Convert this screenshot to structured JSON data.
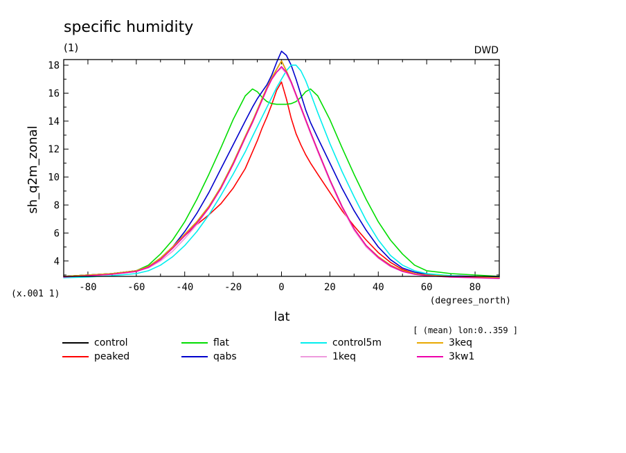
{
  "chart_data": {
    "type": "line",
    "title": "specific humidity",
    "subtitle_left": "(1)",
    "subtitle_right": "DWD",
    "xlabel": "lat",
    "xunits": "(degrees_north)",
    "ylabel": "sh_q2m_zonal",
    "yscale_note": "(x.001 1)",
    "footnote": "[ (mean) lon:0..359 ]",
    "xlim": [
      -90,
      90
    ],
    "ylim": [
      2.9,
      18.4
    ],
    "xticks": [
      -80,
      -60,
      -40,
      -20,
      0,
      20,
      40,
      60,
      80
    ],
    "yticks": [
      4,
      6,
      8,
      10,
      12,
      14,
      16,
      18
    ],
    "grid": false,
    "legend_position": "bottom",
    "x": [
      -90,
      -80,
      -70,
      -60,
      -55,
      -50,
      -45,
      -40,
      -35,
      -30,
      -25,
      -20,
      -15,
      -12,
      -10,
      -8,
      -6,
      -4,
      -2,
      0,
      2,
      4,
      6,
      8,
      10,
      12,
      15,
      20,
      25,
      30,
      35,
      40,
      45,
      50,
      55,
      60,
      70,
      80,
      90
    ],
    "series": [
      {
        "name": "control",
        "color": "#000000",
        "values": [
          2.9,
          3.0,
          3.1,
          3.3,
          3.6,
          4.2,
          5.0,
          5.9,
          6.8,
          7.9,
          9.3,
          11.0,
          12.9,
          14.0,
          14.8,
          15.6,
          16.4,
          17.1,
          17.7,
          18.3,
          17.6,
          16.8,
          15.9,
          15.0,
          14.1,
          13.2,
          11.9,
          9.8,
          7.9,
          6.3,
          5.1,
          4.3,
          3.7,
          3.3,
          3.1,
          3.0,
          2.9,
          2.85,
          2.8
        ]
      },
      {
        "name": "peaked",
        "color": "#ff0000",
        "values": [
          2.9,
          3.0,
          3.1,
          3.3,
          3.6,
          4.2,
          5.0,
          5.8,
          6.6,
          7.3,
          8.1,
          9.2,
          10.6,
          11.8,
          12.6,
          13.5,
          14.3,
          15.2,
          16.2,
          16.8,
          15.6,
          14.2,
          13.1,
          12.3,
          11.6,
          11.0,
          10.2,
          8.9,
          7.6,
          6.5,
          5.5,
          4.6,
          3.9,
          3.4,
          3.1,
          3.0,
          2.9,
          2.85,
          2.8
        ]
      },
      {
        "name": "flat",
        "color": "#00dd00",
        "values": [
          2.9,
          3.0,
          3.1,
          3.3,
          3.7,
          4.5,
          5.5,
          6.8,
          8.4,
          10.2,
          12.1,
          14.1,
          15.8,
          16.3,
          16.1,
          15.7,
          15.4,
          15.25,
          15.2,
          15.2,
          15.2,
          15.25,
          15.4,
          15.7,
          16.1,
          16.3,
          15.8,
          14.1,
          12.1,
          10.2,
          8.4,
          6.8,
          5.5,
          4.5,
          3.7,
          3.3,
          3.1,
          3.0,
          2.9
        ]
      },
      {
        "name": "qabs",
        "color": "#0000cc",
        "values": [
          2.9,
          3.0,
          3.1,
          3.3,
          3.6,
          4.2,
          5.0,
          6.1,
          7.4,
          8.9,
          10.6,
          12.3,
          14.0,
          15.0,
          15.6,
          16.1,
          16.6,
          17.3,
          18.2,
          19.0,
          18.7,
          18.0,
          17.0,
          15.9,
          14.8,
          13.9,
          12.8,
          11.0,
          9.2,
          7.6,
          6.2,
          5.0,
          4.1,
          3.5,
          3.2,
          3.05,
          2.95,
          2.9,
          2.85
        ]
      },
      {
        "name": "control5m",
        "color": "#00eeee",
        "values": [
          2.8,
          2.85,
          2.95,
          3.1,
          3.3,
          3.7,
          4.3,
          5.1,
          6.1,
          7.3,
          8.7,
          10.2,
          11.8,
          12.9,
          13.6,
          14.3,
          15.0,
          15.7,
          16.4,
          17.0,
          17.6,
          18.0,
          18.0,
          17.6,
          16.9,
          16.0,
          14.6,
          12.4,
          10.4,
          8.6,
          6.9,
          5.5,
          4.4,
          3.7,
          3.3,
          3.1,
          2.95,
          2.85,
          2.8
        ]
      },
      {
        "name": "1keq",
        "color": "#ee99dd",
        "values": [
          2.85,
          2.95,
          3.05,
          3.25,
          3.5,
          4.0,
          4.7,
          5.6,
          6.6,
          7.8,
          9.2,
          10.9,
          12.8,
          13.9,
          14.7,
          15.5,
          16.3,
          17.0,
          17.5,
          17.8,
          17.4,
          16.7,
          15.8,
          14.9,
          14.0,
          13.1,
          11.8,
          9.7,
          7.8,
          6.2,
          5.0,
          4.2,
          3.6,
          3.25,
          3.05,
          2.95,
          2.85,
          2.8,
          2.75
        ]
      },
      {
        "name": "3keq",
        "color": "#e8a800",
        "values": [
          2.9,
          3.0,
          3.1,
          3.3,
          3.6,
          4.2,
          5.0,
          5.9,
          6.8,
          7.9,
          9.3,
          11.0,
          12.9,
          14.0,
          14.8,
          15.6,
          16.4,
          17.1,
          17.7,
          18.3,
          17.6,
          16.8,
          15.9,
          15.0,
          14.1,
          13.2,
          11.9,
          9.8,
          7.9,
          6.3,
          5.1,
          4.3,
          3.7,
          3.3,
          3.1,
          3.0,
          2.9,
          2.85,
          2.8
        ]
      },
      {
        "name": "3kw1",
        "color": "#ee00aa",
        "values": [
          2.85,
          2.95,
          3.05,
          3.25,
          3.55,
          4.1,
          4.9,
          5.8,
          6.7,
          7.8,
          9.2,
          10.9,
          12.8,
          13.9,
          14.7,
          15.5,
          16.3,
          17.0,
          17.5,
          17.9,
          17.5,
          16.8,
          15.9,
          15.0,
          14.1,
          13.2,
          11.9,
          9.8,
          7.9,
          6.3,
          5.1,
          4.25,
          3.65,
          3.25,
          3.05,
          2.95,
          2.85,
          2.8,
          2.75
        ]
      }
    ]
  }
}
